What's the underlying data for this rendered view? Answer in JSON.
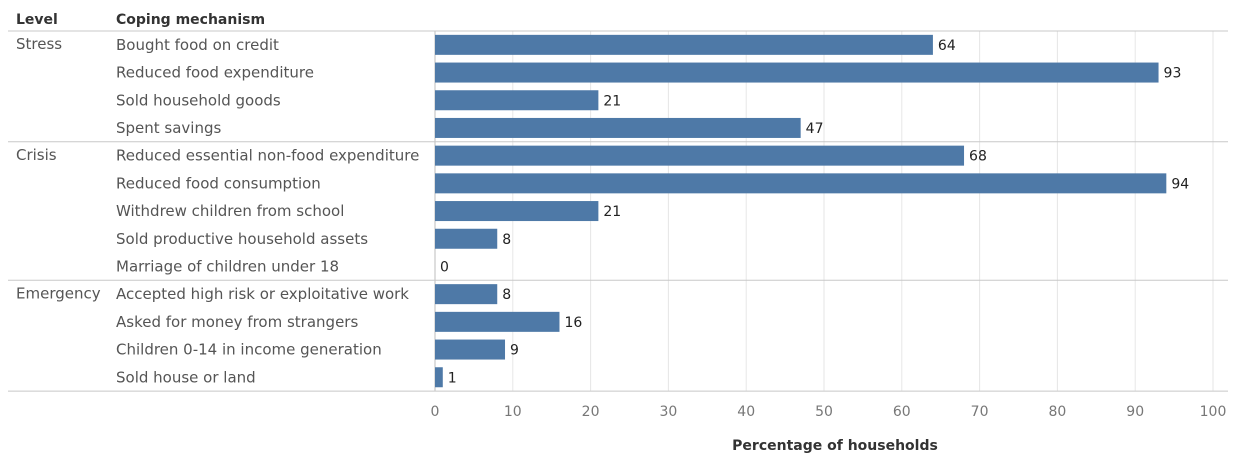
{
  "header": {
    "level": "Level",
    "mechanism": "Coping mechanism"
  },
  "colors": {
    "bar": "#4e79a7",
    "grid": "#e6e6e6",
    "separator": "#c8c8c8"
  },
  "chart_data": {
    "type": "bar",
    "orientation": "horizontal",
    "xlabel": "Percentage of households",
    "xlim": [
      0,
      100
    ],
    "xticks": [
      0,
      10,
      20,
      30,
      40,
      50,
      60,
      70,
      80,
      90,
      100
    ],
    "grid": true,
    "groups": [
      {
        "level": "Stress",
        "items": [
          {
            "label": "Bought food on credit",
            "value": 64
          },
          {
            "label": "Reduced food expenditure",
            "value": 93
          },
          {
            "label": "Sold household goods",
            "value": 21
          },
          {
            "label": "Spent savings",
            "value": 47
          }
        ]
      },
      {
        "level": "Crisis",
        "items": [
          {
            "label": "Reduced essential non-food expenditure",
            "value": 68
          },
          {
            "label": "Reduced food consumption",
            "value": 94
          },
          {
            "label": "Withdrew children from school",
            "value": 21
          },
          {
            "label": "Sold productive household assets",
            "value": 8
          },
          {
            "label": "Marriage of children under 18",
            "value": 0
          }
        ]
      },
      {
        "level": "Emergency",
        "items": [
          {
            "label": "Accepted high risk or exploitative work",
            "value": 8
          },
          {
            "label": "Asked for money from strangers",
            "value": 16
          },
          {
            "label": "Children 0-14 in income generation",
            "value": 9
          },
          {
            "label": "Sold house or land",
            "value": 1
          }
        ]
      }
    ]
  }
}
